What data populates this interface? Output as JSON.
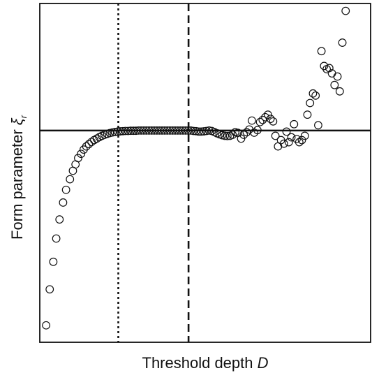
{
  "chart_data": {
    "type": "scatter",
    "xlabel": "Threshold depth D",
    "xlabel_parts": {
      "text": "Threshold depth ",
      "variable": "D"
    },
    "ylabel": "Form parameter ξr",
    "ylabel_parts": {
      "text": "Form parameter ",
      "symbol": "ξ",
      "subscript": "r"
    },
    "xlim": [
      0,
      100
    ],
    "ylim": [
      -1.0,
      0.6
    ],
    "grid": false,
    "legend": "none",
    "ticks_shown": false,
    "reference_lines": [
      {
        "orientation": "horizontal",
        "y": 0,
        "style": "solid"
      },
      {
        "orientation": "vertical",
        "x": 23.4,
        "style": "dotted"
      },
      {
        "orientation": "vertical",
        "x": 44.9,
        "style": "dashed"
      }
    ],
    "points": [
      [
        1.3,
        -0.92
      ],
      [
        2.4,
        -0.75
      ],
      [
        3.5,
        -0.62
      ],
      [
        4.4,
        -0.51
      ],
      [
        5.4,
        -0.42
      ],
      [
        6.5,
        -0.34
      ],
      [
        7.4,
        -0.28
      ],
      [
        8.6,
        -0.23
      ],
      [
        9.5,
        -0.19
      ],
      [
        10.3,
        -0.16
      ],
      [
        11.1,
        -0.13
      ],
      [
        12.0,
        -0.11
      ],
      [
        12.8,
        -0.09
      ],
      [
        13.6,
        -0.075
      ],
      [
        14.4,
        -0.064
      ],
      [
        15.2,
        -0.054
      ],
      [
        16.0,
        -0.045
      ],
      [
        16.8,
        -0.038
      ],
      [
        17.6,
        -0.031
      ],
      [
        18.4,
        -0.025
      ],
      [
        19.2,
        -0.02
      ],
      [
        20.0,
        -0.016
      ],
      [
        20.8,
        -0.012
      ],
      [
        21.6,
        -0.009
      ],
      [
        22.4,
        -0.007
      ],
      [
        23.2,
        -0.005
      ],
      [
        24.0,
        -0.004
      ],
      [
        24.8,
        -0.003
      ],
      [
        25.6,
        -0.002
      ],
      [
        26.4,
        -0.002
      ],
      [
        27.2,
        -0.001
      ],
      [
        28.0,
        -0.001
      ],
      [
        28.8,
        -0.001
      ],
      [
        29.6,
        0.0
      ],
      [
        30.4,
        0.0
      ],
      [
        31.2,
        0.0
      ],
      [
        32.0,
        0.0
      ],
      [
        32.8,
        0.0
      ],
      [
        33.6,
        0.0
      ],
      [
        34.4,
        0.0
      ],
      [
        35.2,
        0.0
      ],
      [
        36.0,
        0.0
      ],
      [
        36.8,
        0.0
      ],
      [
        37.6,
        0.0
      ],
      [
        38.4,
        0.0
      ],
      [
        39.2,
        0.0
      ],
      [
        40.0,
        0.0
      ],
      [
        40.8,
        0.0
      ],
      [
        41.6,
        0.0
      ],
      [
        42.4,
        0.0
      ],
      [
        43.2,
        0.0
      ],
      [
        44.0,
        0.0
      ],
      [
        44.8,
        0.0
      ],
      [
        45.6,
        0.0
      ],
      [
        46.4,
        -0.002
      ],
      [
        47.2,
        -0.003
      ],
      [
        48.0,
        -0.005
      ],
      [
        48.8,
        -0.005
      ],
      [
        49.6,
        -0.004
      ],
      [
        50.4,
        -0.002
      ],
      [
        51.2,
        0.0
      ],
      [
        52.0,
        -0.002
      ],
      [
        52.8,
        -0.007
      ],
      [
        53.6,
        -0.013
      ],
      [
        54.4,
        -0.018
      ],
      [
        55.2,
        -0.022
      ],
      [
        56.0,
        -0.025
      ],
      [
        56.8,
        -0.026
      ],
      [
        57.6,
        -0.025
      ],
      [
        58.4,
        -0.02
      ],
      [
        59.2,
        -0.008
      ],
      [
        60.0,
        -0.011
      ],
      [
        61.0,
        -0.038
      ],
      [
        61.8,
        -0.02
      ],
      [
        62.7,
        -0.008
      ],
      [
        63.5,
        0.005
      ],
      [
        64.3,
        0.047
      ],
      [
        65.0,
        -0.01
      ],
      [
        66.0,
        0.002
      ],
      [
        66.8,
        0.04
      ],
      [
        67.6,
        0.05
      ],
      [
        68.4,
        0.063
      ],
      [
        69.2,
        0.075
      ],
      [
        70.0,
        0.055
      ],
      [
        70.8,
        0.043
      ],
      [
        71.5,
        -0.025
      ],
      [
        72.3,
        -0.075
      ],
      [
        73.2,
        -0.045
      ],
      [
        74.1,
        -0.062
      ],
      [
        74.9,
        -0.005
      ],
      [
        75.6,
        -0.055
      ],
      [
        76.4,
        -0.032
      ],
      [
        77.2,
        0.03
      ],
      [
        78.0,
        -0.04
      ],
      [
        78.8,
        -0.055
      ],
      [
        79.6,
        -0.045
      ],
      [
        80.5,
        -0.025
      ],
      [
        81.3,
        0.075
      ],
      [
        82.1,
        0.13
      ],
      [
        83.0,
        0.175
      ],
      [
        83.8,
        0.165
      ],
      [
        84.6,
        0.025
      ],
      [
        85.6,
        0.375
      ],
      [
        86.4,
        0.305
      ],
      [
        87.2,
        0.29
      ],
      [
        88.0,
        0.295
      ],
      [
        88.8,
        0.27
      ],
      [
        89.6,
        0.215
      ],
      [
        90.5,
        0.255
      ],
      [
        91.2,
        0.185
      ],
      [
        92.0,
        0.415
      ],
      [
        93.0,
        0.565
      ]
    ]
  }
}
